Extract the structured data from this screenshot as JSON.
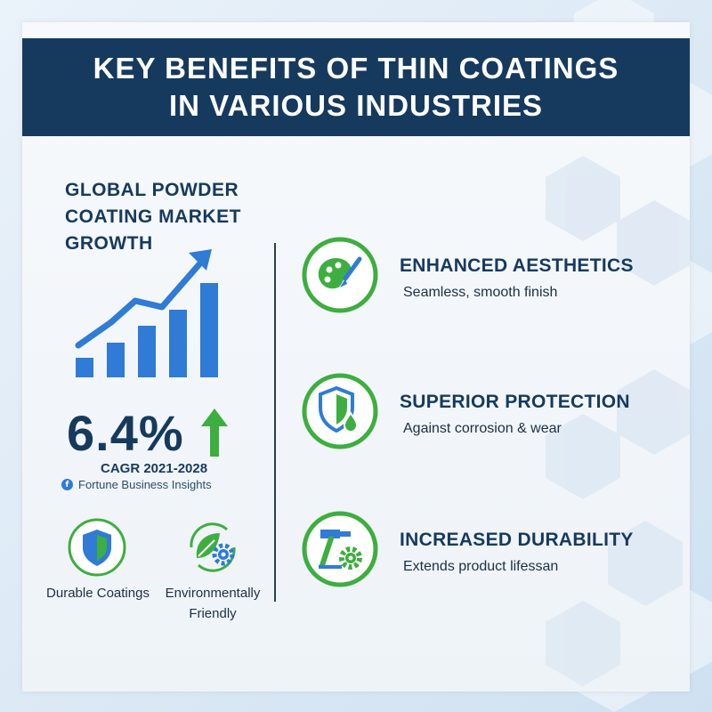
{
  "header": {
    "title": "KEY BENEFITS OF THIN COATINGS IN VARIOUS INDUSTRIES"
  },
  "market": {
    "title": "GLOBAL POWDER COATING MARKET GROWTH",
    "chart_icon": "bar-chart-growth-icon",
    "growth_value": "6.4%",
    "growth_icon": "up-arrow-icon",
    "period": "CAGR 2021-2028",
    "source": "Fortune Business Insights",
    "source_icon_glyph": "f"
  },
  "features": [
    {
      "label": "Durable Coatings",
      "icon": "shield-icon"
    },
    {
      "label": "Environmentally Friendly",
      "icon": "leaf-gear-icon"
    }
  ],
  "benefits": [
    {
      "title": "ENHANCED AESTHETICS",
      "description": "Seamless, smooth finish",
      "icon": "palette-brush-icon"
    },
    {
      "title": "SUPERIOR PROTECTION",
      "description": "Against corrosion & wear",
      "icon": "shield-drop-icon"
    },
    {
      "title": "INCREASED DURABILITY",
      "description": "Extends product lifessan",
      "icon": "hammer-gear-icon"
    }
  ],
  "colors": {
    "navy": "#163a5e",
    "accent_green": "#3dae3f",
    "accent_blue": "#2f7bd6",
    "background": "#dbe8f4"
  }
}
